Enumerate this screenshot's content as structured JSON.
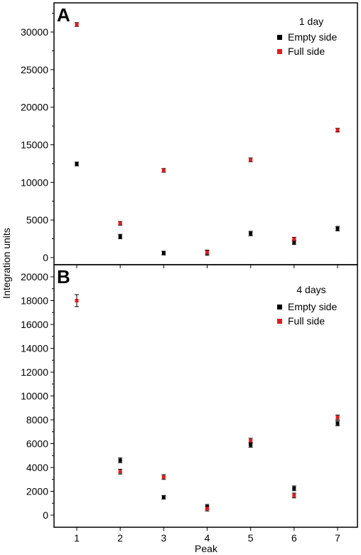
{
  "figure": {
    "ylabel": "Integration units",
    "xlabel": "Peak"
  },
  "chart_data": [
    {
      "type": "scatter",
      "panel_label": "A",
      "legend_title": "1 day",
      "x": [
        1,
        2,
        3,
        4,
        5,
        6,
        7
      ],
      "xlim": [
        0.45,
        7.2
      ],
      "ylim": [
        -800,
        32800
      ],
      "yticks": [
        0,
        5000,
        10000,
        15000,
        20000,
        25000,
        30000
      ],
      "xticks": [
        1,
        2,
        3,
        4,
        5,
        6,
        7
      ],
      "series": [
        {
          "name": "Empty side",
          "color": "#000000",
          "values": [
            12450,
            2800,
            600,
            650,
            3200,
            2050,
            3850
          ],
          "errors": [
            250,
            300,
            250,
            350,
            300,
            300,
            300
          ]
        },
        {
          "name": "Full side",
          "color": "#e21b1b",
          "values": [
            31000,
            4550,
            11600,
            700,
            13000,
            2450,
            16950
          ],
          "errors": [
            250,
            250,
            250,
            250,
            250,
            250,
            250
          ]
        }
      ],
      "legend": "top-right",
      "grid": false
    },
    {
      "type": "scatter",
      "panel_label": "B",
      "legend_title": "4 days",
      "x": [
        1,
        2,
        3,
        4,
        5,
        6,
        7
      ],
      "xlim": [
        0.45,
        7.2
      ],
      "ylim": [
        -1000,
        21000
      ],
      "yticks": [
        0,
        2000,
        4000,
        6000,
        8000,
        10000,
        12000,
        14000,
        16000,
        18000,
        20000
      ],
      "xticks": [
        1,
        2,
        3,
        4,
        5,
        6,
        7
      ],
      "series": [
        {
          "name": "Empty side",
          "color": "#000000",
          "values": [
            null,
            4600,
            1500,
            700,
            5900,
            2250,
            7700
          ],
          "errors": [
            null,
            200,
            150,
            200,
            200,
            200,
            200
          ]
        },
        {
          "name": "Full side",
          "color": "#e21b1b",
          "values": [
            18000,
            3650,
            3200,
            550,
            6250,
            1650,
            8200
          ],
          "errors": [
            500,
            200,
            200,
            200,
            200,
            200,
            200
          ]
        }
      ],
      "legend": "top-right",
      "grid": false
    }
  ]
}
